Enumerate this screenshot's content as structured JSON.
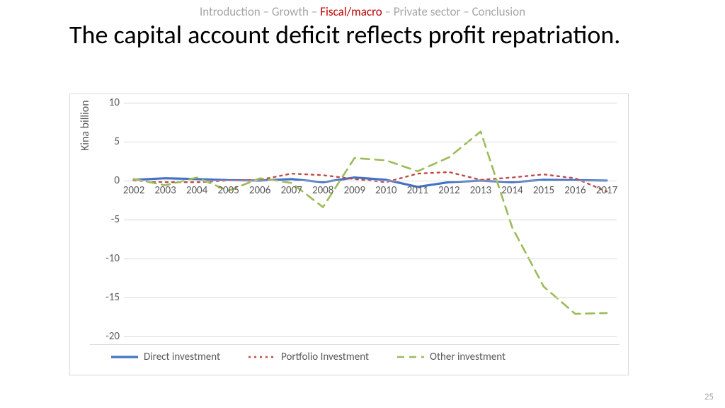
{
  "breadcrumb": {
    "items": [
      "Introduction",
      "Growth",
      "Fiscal/macro",
      "Private sector",
      "Conclusion"
    ],
    "active_index": 2,
    "separator": " – ",
    "color_inactive": "#a6a6a6",
    "color_active": "#c00000",
    "fontsize": 17
  },
  "title": "The capital account deficit reflects profit repatriation.",
  "page_number": "25",
  "chart": {
    "type": "line",
    "y_axis_title": "Kina billion",
    "background_color": "#ffffff",
    "border_color": "#d9d9d9",
    "grid_color": "#d9d9d9",
    "tick_font_color": "#595959",
    "tick_fontsize": 15,
    "ylim": [
      -20,
      10
    ],
    "ytick_step": 5,
    "yticks": [
      10,
      5,
      0,
      -5,
      -10,
      -15,
      -20
    ],
    "categories": [
      "2002",
      "2003",
      "2004",
      "2005",
      "2006",
      "2007",
      "2008",
      "2009",
      "2010",
      "2011",
      "2012",
      "2013",
      "2014",
      "2015",
      "2016",
      "2017"
    ],
    "series": [
      {
        "name": "Direct investment",
        "color": "#4472c4",
        "line_width": 3.2,
        "dash": "solid",
        "marker": null,
        "values": [
          0.1,
          0.3,
          0.2,
          0.05,
          0.0,
          0.2,
          -0.2,
          0.4,
          0.1,
          -0.8,
          -0.2,
          0.0,
          -0.2,
          0.1,
          0.05,
          0.0
        ]
      },
      {
        "name": "Portfolio Investment",
        "color": "#be4b48",
        "line_width": 2.4,
        "dash": "dotted",
        "marker": null,
        "values": [
          0.0,
          -0.2,
          -0.2,
          0.0,
          0.1,
          0.9,
          0.7,
          0.2,
          -0.2,
          0.9,
          1.1,
          0.1,
          0.4,
          0.8,
          0.3,
          -1.4
        ]
      },
      {
        "name": "Other investment",
        "color": "#9bbb59",
        "line_width": 2.6,
        "dash": "dashed",
        "marker": null,
        "values": [
          0.2,
          -0.6,
          0.4,
          -1.3,
          0.3,
          -0.3,
          -3.4,
          2.9,
          2.6,
          1.2,
          3.0,
          6.3,
          -6.0,
          -13.6,
          -17.1,
          -17.0
        ]
      }
    ],
    "legend": {
      "position": "bottom",
      "labels": [
        "Direct investment",
        "Portfolio Investment",
        "Other investment"
      ]
    }
  }
}
